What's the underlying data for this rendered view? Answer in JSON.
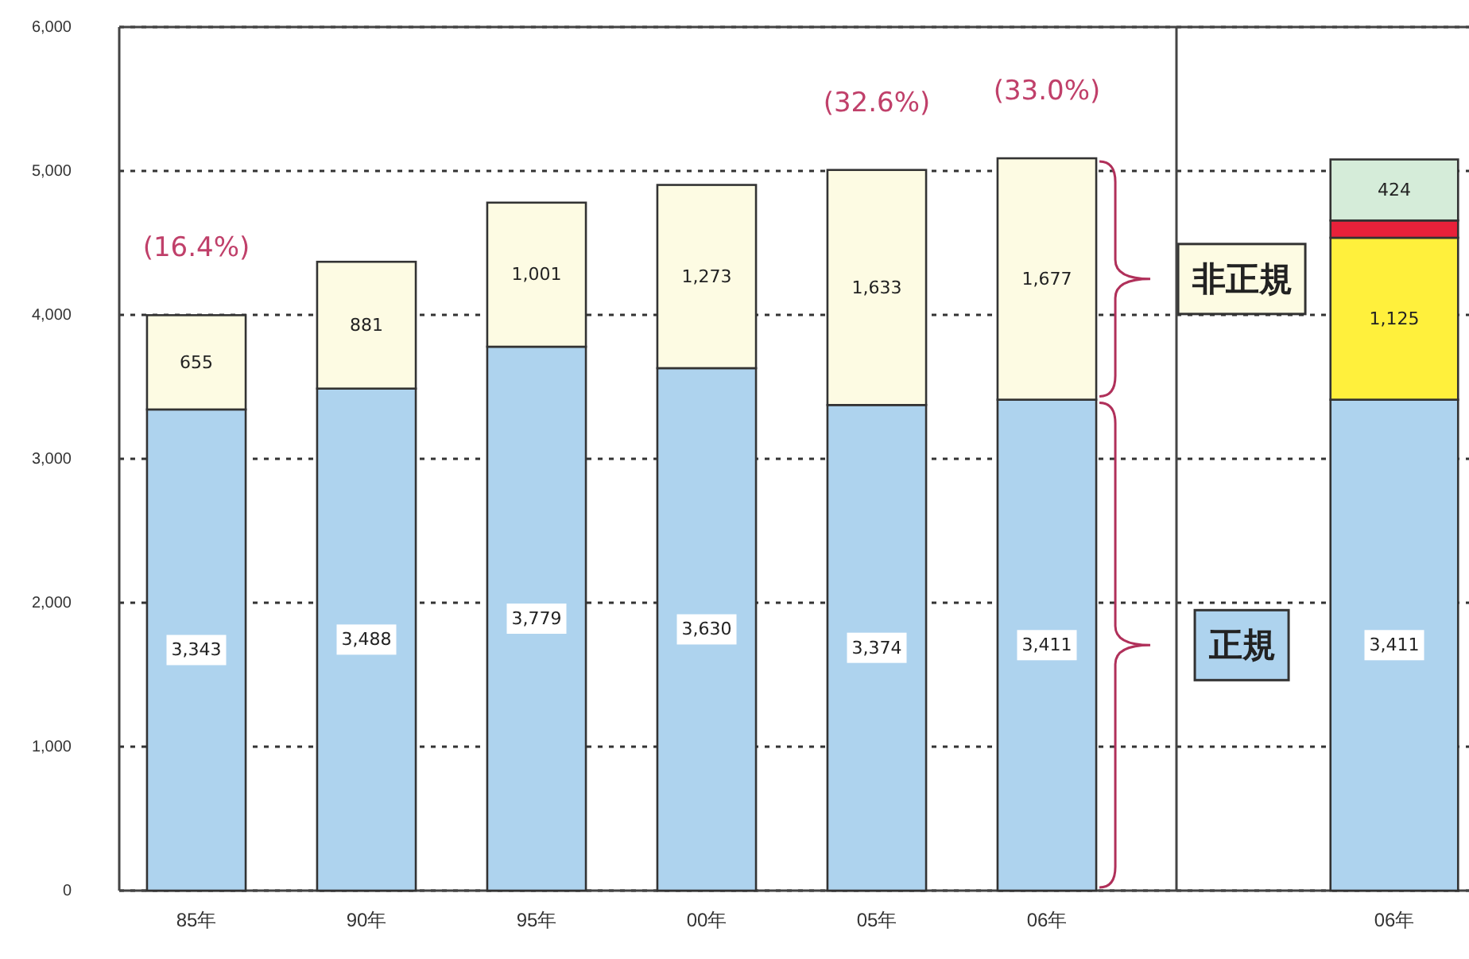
{
  "chart_data": [
    {
      "type": "bar",
      "stacked": true,
      "categories": [
        "85年",
        "90年",
        "95年",
        "00年",
        "05年",
        "06年"
      ],
      "series": [
        {
          "name": "正規",
          "color": "#aed3ee",
          "values": [
            3343,
            3488,
            3779,
            3630,
            3374,
            3411
          ],
          "value_labels": [
            "3,343",
            "3,488",
            "3,779",
            "3,630",
            "3,374",
            "3,411"
          ]
        },
        {
          "name": "非正規",
          "color": "#fdfbe3",
          "values": [
            655,
            881,
            1001,
            1273,
            1633,
            1677
          ],
          "value_labels": [
            "655",
            "881",
            "1,001",
            "1,273",
            "1,633",
            "1,677"
          ]
        }
      ],
      "ylim": [
        0,
        6000
      ],
      "yticks": [
        0,
        {
          "value": 1000,
          "label": "1,000"
        },
        {
          "value": 2000,
          "label": "2,000"
        },
        {
          "value": 3000,
          "label": "3,000"
        },
        {
          "value": 4000,
          "label": "4,000"
        },
        {
          "value": 5000,
          "label": "5,000"
        },
        {
          "value": 6000,
          "label": "6,000"
        }
      ],
      "grid": "y",
      "legend": false,
      "annotations": [
        {
          "text": "(16.4%)",
          "x": "85年",
          "y": 3998
        },
        {
          "text": "(32.6%)",
          "x": "05年",
          "y": 5007
        },
        {
          "text": "(33.0%)",
          "x": "06年",
          "y": 5088
        }
      ]
    },
    {
      "type": "bar",
      "stacked": true,
      "categories": [
        "06年"
      ],
      "series": [
        {
          "color": "#aed3ee",
          "values": [
            3411
          ],
          "value_labels": [
            "3,411"
          ]
        },
        {
          "color": "#fff03c",
          "values": [
            1125
          ],
          "value_labels": [
            "1,125"
          ]
        },
        {
          "color": "#e8213a",
          "values": [
            120
          ]
        },
        {
          "color": "#d5ecd9",
          "values": [
            424
          ],
          "value_labels": [
            "424"
          ]
        }
      ],
      "ylim": [
        0,
        6000
      ],
      "yticks": [
        {
          "value": 0,
          "label": null
        },
        {
          "value": 1000,
          "label": null
        },
        {
          "value": 2000,
          "label": null
        },
        {
          "value": 3000,
          "label": null
        },
        {
          "value": 4000,
          "label": null
        },
        {
          "value": 5000,
          "label": null
        },
        {
          "value": 6000,
          "label": null
        }
      ],
      "grid": "y",
      "legend": false,
      "tick_labels": "x"
    }
  ]
}
